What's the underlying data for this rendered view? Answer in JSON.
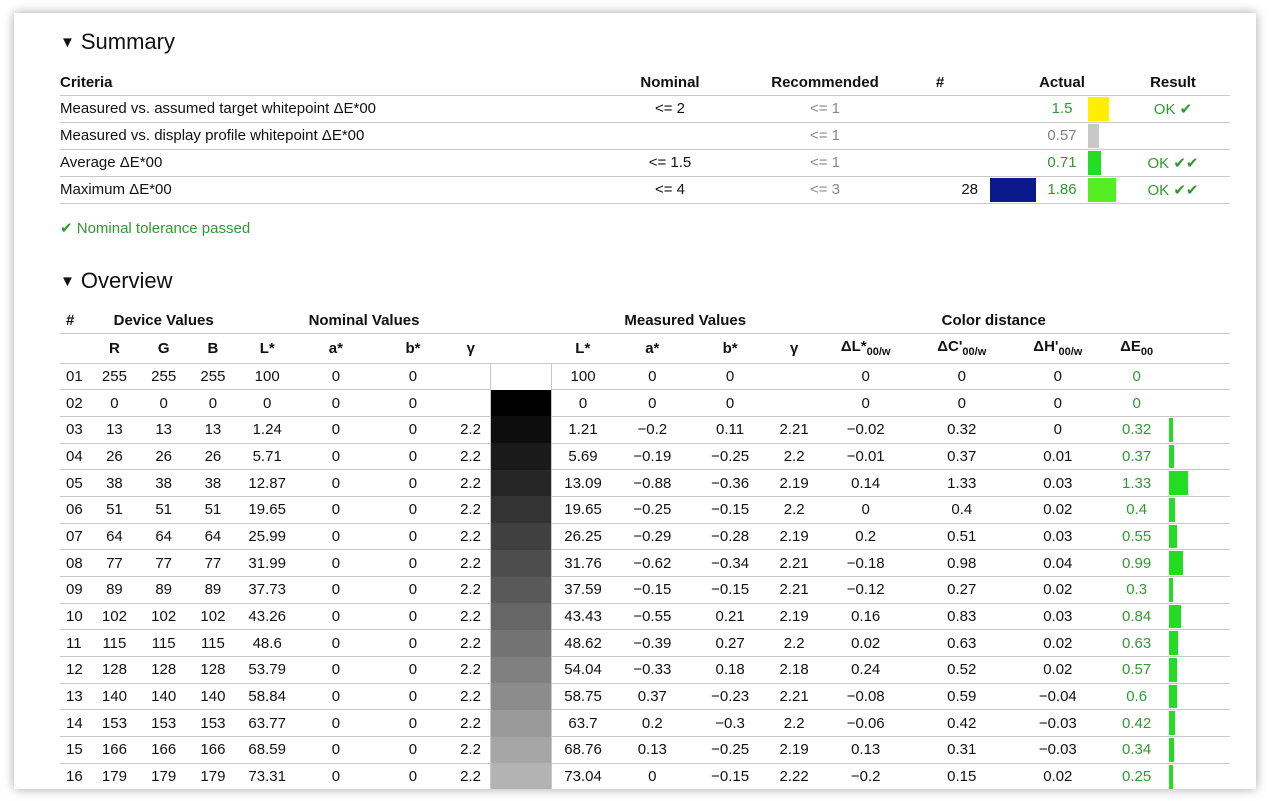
{
  "summary": {
    "title": "Summary",
    "headers": {
      "criteria": "Criteria",
      "nominal": "Nominal",
      "recommended": "Recommended",
      "hash": "#",
      "actual": "Actual",
      "result": "Result"
    },
    "rows": [
      {
        "criteria": "Measured vs. assumed target whitepoint ΔE*00",
        "nominal": "<= 2",
        "recommended": "<= 1",
        "count": "",
        "actual": "1.5",
        "actual_color": "#2f9a2f",
        "bar_color": "#ffee00",
        "bar_fraction": 0.75,
        "result": "OK ✔"
      },
      {
        "criteria": "Measured vs. display profile whitepoint ΔE*00",
        "nominal": "",
        "recommended": "<= 1",
        "count": "",
        "actual": "0.57",
        "actual_color": "#808080",
        "bar_color": "#c8c8c8",
        "bar_fraction": 0.4,
        "result": ""
      },
      {
        "criteria": "Average ΔE*00",
        "nominal": "<= 1.5",
        "recommended": "<= 1",
        "count": "",
        "actual": "0.71",
        "actual_color": "#2f9a2f",
        "bar_color": "#22dd22",
        "bar_fraction": 0.45,
        "result": "OK ✔✔"
      },
      {
        "criteria": "Maximum ΔE*00",
        "nominal": "<= 4",
        "recommended": "<= 3",
        "count": "28",
        "count_swatch": "#0a1a8c",
        "actual": "1.86",
        "actual_color": "#2f9a2f",
        "bar_color": "#55ee22",
        "bar_fraction": 1.0,
        "result": "OK ✔✔"
      }
    ],
    "passed_text": "✔ Nominal tolerance passed"
  },
  "overview": {
    "title": "Overview",
    "group_headers": {
      "hash": "#",
      "device": "Device Values",
      "nominal": "Nominal Values",
      "measured": "Measured Values",
      "distance": "Color distance"
    },
    "columns": {
      "R": "R",
      "G": "G",
      "B": "B",
      "L": "L*",
      "a": "a*",
      "b": "b*",
      "gamma": "γ",
      "mL": "L*",
      "ma": "a*",
      "mb": "b*",
      "mgamma": "γ",
      "dL": "ΔL*",
      "dC": "ΔC'",
      "dH": "ΔH'",
      "dE": "ΔE",
      "sub_w": "00/w",
      "sub_00": "00"
    },
    "rows": [
      {
        "n": "01",
        "r": "255",
        "g": "255",
        "b": "255",
        "L": "100",
        "a": "0",
        "bb": "0",
        "gamma": "",
        "gray": "#ffffff",
        "mL": "100",
        "ma": "0",
        "mb": "0",
        "mg": "",
        "dL": "0",
        "dC": "0",
        "dH": "0",
        "dE": "0",
        "de_val": 0
      },
      {
        "n": "02",
        "r": "0",
        "g": "0",
        "b": "0",
        "L": "0",
        "a": "0",
        "bb": "0",
        "gamma": "",
        "gray": "#000000",
        "mL": "0",
        "ma": "0",
        "mb": "0",
        "mg": "",
        "dL": "0",
        "dC": "0",
        "dH": "0",
        "dE": "0",
        "de_val": 0
      },
      {
        "n": "03",
        "r": "13",
        "g": "13",
        "b": "13",
        "L": "1.24",
        "a": "0",
        "bb": "0",
        "gamma": "2.2",
        "gray": "#0d0d0d",
        "mL": "1.21",
        "ma": "−0.2",
        "mb": "0.11",
        "mg": "2.21",
        "dL": "−0.02",
        "dC": "0.32",
        "dH": "0",
        "dE": "0.32",
        "de_val": 0.32
      },
      {
        "n": "04",
        "r": "26",
        "g": "26",
        "b": "26",
        "L": "5.71",
        "a": "0",
        "bb": "0",
        "gamma": "2.2",
        "gray": "#1a1a1a",
        "mL": "5.69",
        "ma": "−0.19",
        "mb": "−0.25",
        "mg": "2.2",
        "dL": "−0.01",
        "dC": "0.37",
        "dH": "0.01",
        "dE": "0.37",
        "de_val": 0.37
      },
      {
        "n": "05",
        "r": "38",
        "g": "38",
        "b": "38",
        "L": "12.87",
        "a": "0",
        "bb": "0",
        "gamma": "2.2",
        "gray": "#262626",
        "mL": "13.09",
        "ma": "−0.88",
        "mb": "−0.36",
        "mg": "2.19",
        "dL": "0.14",
        "dC": "1.33",
        "dH": "0.03",
        "dE": "1.33",
        "de_val": 1.33
      },
      {
        "n": "06",
        "r": "51",
        "g": "51",
        "b": "51",
        "L": "19.65",
        "a": "0",
        "bb": "0",
        "gamma": "2.2",
        "gray": "#333333",
        "mL": "19.65",
        "ma": "−0.25",
        "mb": "−0.15",
        "mg": "2.2",
        "dL": "0",
        "dC": "0.4",
        "dH": "0.02",
        "dE": "0.4",
        "de_val": 0.4
      },
      {
        "n": "07",
        "r": "64",
        "g": "64",
        "b": "64",
        "L": "25.99",
        "a": "0",
        "bb": "0",
        "gamma": "2.2",
        "gray": "#404040",
        "mL": "26.25",
        "ma": "−0.29",
        "mb": "−0.28",
        "mg": "2.19",
        "dL": "0.2",
        "dC": "0.51",
        "dH": "0.03",
        "dE": "0.55",
        "de_val": 0.55
      },
      {
        "n": "08",
        "r": "77",
        "g": "77",
        "b": "77",
        "L": "31.99",
        "a": "0",
        "bb": "0",
        "gamma": "2.2",
        "gray": "#4d4d4d",
        "mL": "31.76",
        "ma": "−0.62",
        "mb": "−0.34",
        "mg": "2.21",
        "dL": "−0.18",
        "dC": "0.98",
        "dH": "0.04",
        "dE": "0.99",
        "de_val": 0.99
      },
      {
        "n": "09",
        "r": "89",
        "g": "89",
        "b": "89",
        "L": "37.73",
        "a": "0",
        "bb": "0",
        "gamma": "2.2",
        "gray": "#595959",
        "mL": "37.59",
        "ma": "−0.15",
        "mb": "−0.15",
        "mg": "2.21",
        "dL": "−0.12",
        "dC": "0.27",
        "dH": "0.02",
        "dE": "0.3",
        "de_val": 0.3
      },
      {
        "n": "10",
        "r": "102",
        "g": "102",
        "b": "102",
        "L": "43.26",
        "a": "0",
        "bb": "0",
        "gamma": "2.2",
        "gray": "#666666",
        "mL": "43.43",
        "ma": "−0.55",
        "mb": "0.21",
        "mg": "2.19",
        "dL": "0.16",
        "dC": "0.83",
        "dH": "0.03",
        "dE": "0.84",
        "de_val": 0.84
      },
      {
        "n": "11",
        "r": "115",
        "g": "115",
        "b": "115",
        "L": "48.6",
        "a": "0",
        "bb": "0",
        "gamma": "2.2",
        "gray": "#737373",
        "mL": "48.62",
        "ma": "−0.39",
        "mb": "0.27",
        "mg": "2.2",
        "dL": "0.02",
        "dC": "0.63",
        "dH": "0.02",
        "dE": "0.63",
        "de_val": 0.63
      },
      {
        "n": "12",
        "r": "128",
        "g": "128",
        "b": "128",
        "L": "53.79",
        "a": "0",
        "bb": "0",
        "gamma": "2.2",
        "gray": "#808080",
        "mL": "54.04",
        "ma": "−0.33",
        "mb": "0.18",
        "mg": "2.18",
        "dL": "0.24",
        "dC": "0.52",
        "dH": "0.02",
        "dE": "0.57",
        "de_val": 0.57
      },
      {
        "n": "13",
        "r": "140",
        "g": "140",
        "b": "140",
        "L": "58.84",
        "a": "0",
        "bb": "0",
        "gamma": "2.2",
        "gray": "#8c8c8c",
        "mL": "58.75",
        "ma": "0.37",
        "mb": "−0.23",
        "mg": "2.21",
        "dL": "−0.08",
        "dC": "0.59",
        "dH": "−0.04",
        "dE": "0.6",
        "de_val": 0.6
      },
      {
        "n": "14",
        "r": "153",
        "g": "153",
        "b": "153",
        "L": "63.77",
        "a": "0",
        "bb": "0",
        "gamma": "2.2",
        "gray": "#999999",
        "mL": "63.7",
        "ma": "0.2",
        "mb": "−0.3",
        "mg": "2.2",
        "dL": "−0.06",
        "dC": "0.42",
        "dH": "−0.03",
        "dE": "0.42",
        "de_val": 0.42
      },
      {
        "n": "15",
        "r": "166",
        "g": "166",
        "b": "166",
        "L": "68.59",
        "a": "0",
        "bb": "0",
        "gamma": "2.2",
        "gray": "#a6a6a6",
        "mL": "68.76",
        "ma": "0.13",
        "mb": "−0.25",
        "mg": "2.19",
        "dL": "0.13",
        "dC": "0.31",
        "dH": "−0.03",
        "dE": "0.34",
        "de_val": 0.34
      },
      {
        "n": "16",
        "r": "179",
        "g": "179",
        "b": "179",
        "L": "73.31",
        "a": "0",
        "bb": "0",
        "gamma": "2.2",
        "gray": "#b3b3b3",
        "mL": "73.04",
        "ma": "0",
        "mb": "−0.15",
        "mg": "2.22",
        "dL": "−0.2",
        "dC": "0.15",
        "dH": "0.02",
        "dE": "0.25",
        "de_val": 0.25
      }
    ]
  },
  "colors": {
    "pass_green": "#2f9a2f",
    "bar_green": "#22dd22",
    "border": "#c8c8c8"
  }
}
